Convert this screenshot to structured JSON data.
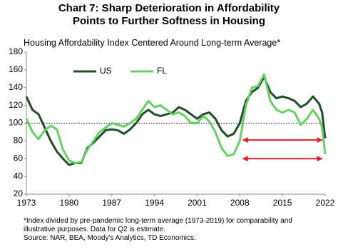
{
  "chart_data": {
    "type": "line",
    "title": "Chart 7: Sharp Deterioration in Affordability Points to Further Softness in Housing",
    "subtitle": "Housing Affordability Index Centered Around Long-term Average*",
    "x": [
      1973,
      1974,
      1975,
      1976,
      1977,
      1978,
      1979,
      1980,
      1981,
      1982,
      1983,
      1984,
      1985,
      1986,
      1987,
      1988,
      1989,
      1990,
      1991,
      1992,
      1993,
      1994,
      1995,
      1996,
      1997,
      1998,
      1999,
      2000,
      2001,
      2002,
      2003,
      2004,
      2005,
      2006,
      2007,
      2008,
      2009,
      2010,
      2011,
      2012,
      2013,
      2014,
      2015,
      2016,
      2017,
      2018,
      2019,
      2020,
      2021,
      2021.5,
      2022
    ],
    "series": [
      {
        "name": "US",
        "color": "#1f4d24",
        "values": [
          130,
          115,
          110,
          95,
          80,
          68,
          60,
          53,
          55,
          55,
          72,
          78,
          85,
          92,
          93,
          92,
          88,
          93,
          100,
          110,
          115,
          110,
          108,
          110,
          112,
          118,
          115,
          110,
          105,
          110,
          112,
          105,
          92,
          85,
          88,
          100,
          125,
          135,
          140,
          152,
          135,
          128,
          130,
          128,
          125,
          118,
          122,
          130,
          122,
          112,
          83
        ]
      },
      {
        "name": "FL",
        "color": "#66d162",
        "values": [
          105,
          90,
          82,
          92,
          97,
          93,
          70,
          58,
          55,
          56,
          70,
          80,
          90,
          95,
          100,
          98,
          96,
          100,
          105,
          115,
          125,
          118,
          120,
          115,
          110,
          112,
          108,
          100,
          100,
          108,
          102,
          90,
          72,
          63,
          65,
          80,
          120,
          140,
          142,
          155,
          125,
          115,
          112,
          115,
          112,
          98,
          105,
          115,
          105,
          95,
          65
        ]
      }
    ],
    "xlim": [
      1973,
      2022
    ],
    "xticks": [
      1973,
      1980,
      1987,
      1994,
      2001,
      2008,
      2015,
      2022
    ],
    "ylim": [
      20,
      180
    ],
    "yticks": [
      20,
      40,
      60,
      80,
      100,
      120,
      140,
      160,
      180
    ],
    "grid": false,
    "reference_line": 100,
    "arrows": [
      {
        "x": [
          2008.5,
          2021.5
        ],
        "y": 81,
        "color": "#e0202a"
      },
      {
        "x": [
          2008.5,
          2021.5
        ],
        "y": 60,
        "color": "#e0202a"
      }
    ],
    "legend": "top-left",
    "notes": [
      "*Index divided by pre-pandemic long-term average (1973-2019) for comparability and illustrative purposes. Data for Q2 is estimate.",
      "Source: NAR, BEA, Moody's Analytics, TD Economics."
    ]
  }
}
